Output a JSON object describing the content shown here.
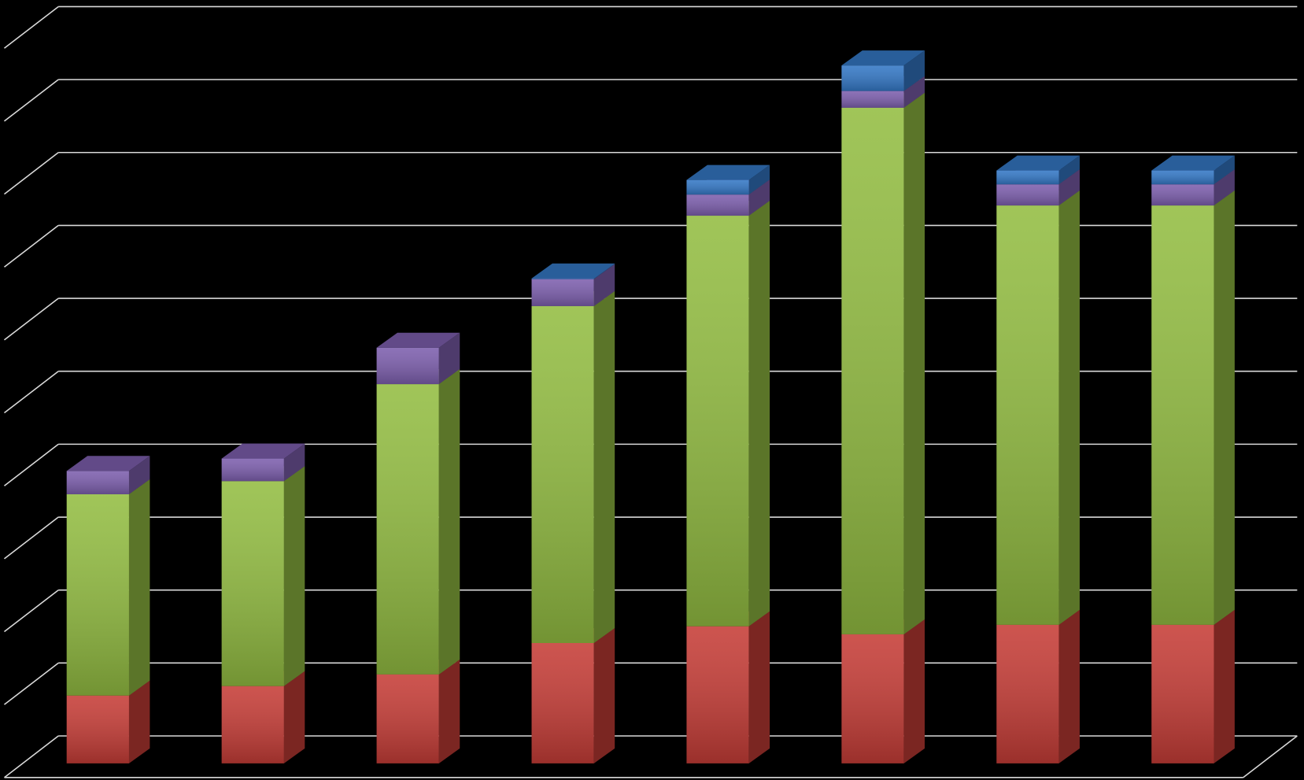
{
  "chart_data": {
    "type": "bar3d-stacked",
    "categories": [
      null,
      null,
      null,
      null,
      null,
      null,
      null,
      null
    ],
    "series": [
      {
        "color": "#c63d37",
        "values": [
          0.93,
          1.06,
          1.22,
          1.65,
          1.88,
          1.77,
          1.9,
          1.9
        ]
      },
      {
        "color": "#93bd42",
        "values": [
          2.76,
          2.81,
          3.98,
          4.62,
          5.63,
          7.22,
          5.75,
          5.75
        ]
      },
      {
        "color": "#7d5fae",
        "values": [
          0.32,
          0.31,
          0.5,
          0.37,
          0.29,
          0.23,
          0.29,
          0.29
        ]
      },
      {
        "color": "#3478c6",
        "values": [
          0,
          0,
          0,
          0.01,
          0.2,
          0.35,
          0.19,
          0.19
        ]
      }
    ],
    "ylim": [
      0,
      10
    ],
    "yticks": [
      0,
      1,
      2,
      3,
      4,
      5,
      6,
      7,
      8,
      9,
      10
    ],
    "grid": true
  }
}
